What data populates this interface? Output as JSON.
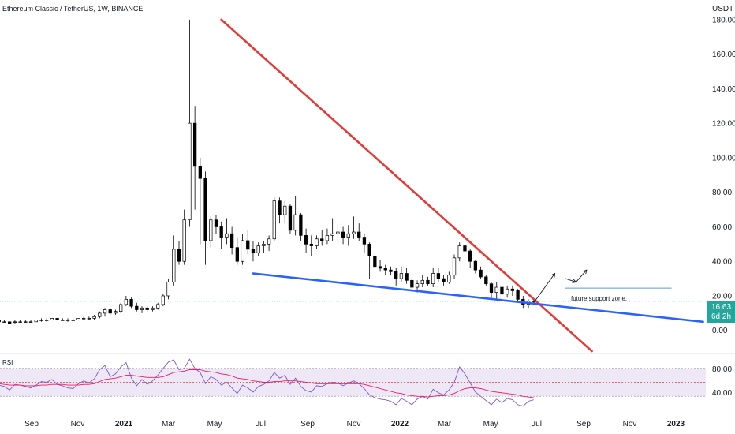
{
  "header": {
    "title": "Ethereum Classic / TetherUS, 1W, BINANCE",
    "currency": "USDT"
  },
  "price_badge": {
    "value": "16.63",
    "countdown": "6d 2h"
  },
  "annotation": {
    "text": "future support zone."
  },
  "rsi": {
    "label": "RSI",
    "upper_label": "80.00",
    "lower_label": "40.00"
  },
  "colors": {
    "up_candle": "#ffffff",
    "down_candle": "#000000",
    "resistance_line": "#e53935",
    "support_line": "#2962ff",
    "rsi_line": "#7e57c2",
    "rsi_ma": "#e91e63",
    "rsi_band": "#ede7f6",
    "badge": "#26a69a"
  },
  "chart_data": [
    {
      "type": "candlestick",
      "title": "Ethereum Classic / TetherUS, 1W, BINANCE",
      "y_axis_label": "USDT",
      "ylim": [
        -12,
        190
      ],
      "y_ticks": [
        "180.00",
        "160.00",
        "140.00",
        "120.00",
        "100.00",
        "80.00",
        "60.00",
        "40.00",
        "20.00",
        "0.00"
      ],
      "x_ticks": [
        "Sep",
        "Nov",
        "2021",
        "Mar",
        "May",
        "Jul",
        "Sep",
        "Nov",
        "2022",
        "Mar",
        "May",
        "Jul",
        "Sep",
        "Nov",
        "2023"
      ],
      "x_ticks_date": [
        "2020-09",
        "2020-11",
        "2021-01",
        "2021-03",
        "2021-05",
        "2021-07",
        "2021-09",
        "2021-11",
        "2022-01",
        "2022-03",
        "2022-05",
        "2022-07",
        "2022-09",
        "2022-11",
        "2023-01"
      ],
      "candles": [
        [
          6,
          7,
          5,
          6
        ],
        [
          6,
          6,
          5,
          5
        ],
        [
          5,
          6,
          5,
          5
        ],
        [
          5,
          5,
          4,
          4
        ],
        [
          5,
          6,
          4,
          5
        ],
        [
          5,
          6,
          5,
          5
        ],
        [
          5,
          6,
          5,
          5
        ],
        [
          5,
          6,
          5,
          5
        ],
        [
          5,
          6,
          5,
          6
        ],
        [
          6,
          7,
          5,
          6
        ],
        [
          6,
          7,
          5,
          6
        ],
        [
          6,
          7,
          6,
          7
        ],
        [
          7,
          7,
          6,
          6
        ],
        [
          6,
          7,
          6,
          6
        ],
        [
          6,
          7,
          5,
          6
        ],
        [
          6,
          7,
          6,
          6
        ],
        [
          6,
          7,
          6,
          7
        ],
        [
          7,
          8,
          6,
          7
        ],
        [
          7,
          8,
          6,
          7
        ],
        [
          7,
          9,
          6,
          8
        ],
        [
          8,
          11,
          7,
          10
        ],
        [
          10,
          13,
          8,
          12
        ],
        [
          12,
          13,
          9,
          10
        ],
        [
          10,
          12,
          9,
          11
        ],
        [
          11,
          16,
          10,
          15
        ],
        [
          15,
          20,
          14,
          18
        ],
        [
          18,
          19,
          13,
          14
        ],
        [
          14,
          16,
          11,
          12
        ],
        [
          12,
          14,
          10,
          13
        ],
        [
          13,
          14,
          11,
          12
        ],
        [
          12,
          14,
          11,
          13
        ],
        [
          13,
          16,
          12,
          15
        ],
        [
          15,
          21,
          14,
          20
        ],
        [
          20,
          30,
          18,
          28
        ],
        [
          28,
          55,
          26,
          47
        ],
        [
          47,
          52,
          38,
          40
        ],
        [
          40,
          70,
          38,
          64
        ],
        [
          64,
          180,
          60,
          120
        ],
        [
          120,
          130,
          70,
          95
        ],
        [
          95,
          100,
          50,
          88
        ],
        [
          88,
          92,
          38,
          52
        ],
        [
          52,
          66,
          48,
          64
        ],
        [
          64,
          67,
          56,
          60
        ],
        [
          60,
          63,
          47,
          54
        ],
        [
          54,
          65,
          50,
          56
        ],
        [
          56,
          60,
          44,
          48
        ],
        [
          48,
          54,
          38,
          40
        ],
        [
          40,
          56,
          38,
          52
        ],
        [
          52,
          58,
          44,
          47
        ],
        [
          47,
          52,
          40,
          45
        ],
        [
          45,
          51,
          43,
          49
        ],
        [
          49,
          52,
          45,
          50
        ],
        [
          50,
          55,
          46,
          53
        ],
        [
          53,
          77,
          52,
          75
        ],
        [
          75,
          77,
          62,
          67
        ],
        [
          67,
          75,
          62,
          72
        ],
        [
          72,
          73,
          56,
          58
        ],
        [
          58,
          78,
          55,
          67
        ],
        [
          67,
          68,
          52,
          55
        ],
        [
          55,
          59,
          45,
          50
        ],
        [
          50,
          55,
          43,
          49
        ],
        [
          49,
          55,
          47,
          53
        ],
        [
          53,
          58,
          49,
          52
        ],
        [
          52,
          59,
          50,
          55
        ],
        [
          55,
          65,
          52,
          56
        ],
        [
          56,
          62,
          50,
          57
        ],
        [
          57,
          60,
          50,
          54
        ],
        [
          54,
          61,
          49,
          56
        ],
        [
          56,
          66,
          53,
          57
        ],
        [
          57,
          62,
          52,
          54
        ],
        [
          54,
          56,
          45,
          50
        ],
        [
          50,
          51,
          30,
          43
        ],
        [
          43,
          45,
          36,
          37
        ],
        [
          37,
          41,
          34,
          36
        ],
        [
          36,
          38,
          32,
          35
        ],
        [
          35,
          37,
          32,
          34
        ],
        [
          34,
          36,
          26,
          30
        ],
        [
          30,
          37,
          28,
          33
        ],
        [
          33,
          36,
          27,
          29
        ],
        [
          29,
          30,
          23,
          25
        ],
        [
          25,
          29,
          22,
          27
        ],
        [
          27,
          32,
          25,
          29
        ],
        [
          29,
          31,
          26,
          27
        ],
        [
          27,
          36,
          25,
          33
        ],
        [
          33,
          36,
          28,
          30
        ],
        [
          30,
          32,
          26,
          28
        ],
        [
          28,
          34,
          27,
          32
        ],
        [
          32,
          44,
          30,
          42
        ],
        [
          42,
          51,
          40,
          49
        ],
        [
          49,
          50,
          40,
          46
        ],
        [
          46,
          47,
          36,
          40
        ],
        [
          40,
          41,
          33,
          35
        ],
        [
          35,
          37,
          30,
          31
        ],
        [
          31,
          32,
          26,
          27
        ],
        [
          27,
          28,
          18,
          22
        ],
        [
          22,
          28,
          18,
          25
        ],
        [
          25,
          26,
          19,
          21
        ],
        [
          21,
          26,
          19,
          24
        ],
        [
          24,
          26,
          20,
          23
        ],
        [
          23,
          24,
          17,
          18
        ],
        [
          18,
          20,
          13,
          15
        ],
        [
          15,
          18,
          13,
          17
        ],
        [
          17,
          18,
          15,
          16.63
        ]
      ],
      "first_candle_date": "2020-07-13",
      "candle_interval_weeks": 1,
      "trendlines": [
        {
          "name": "resistance",
          "color": "#e53935",
          "points": [
            [
              "2021-05-10",
              180
            ],
            [
              "2022-09-12",
              -12
            ]
          ]
        },
        {
          "name": "support",
          "color": "#2962ff",
          "points": [
            [
              "2021-06-21",
              33
            ],
            [
              "2023-02-06",
              5
            ]
          ]
        },
        {
          "name": "future-support-zone",
          "color": "#5b9bd5",
          "points": [
            [
              "2022-08-08",
              24.5
            ],
            [
              "2022-12-26",
              24.5
            ]
          ]
        }
      ],
      "arrows": [
        {
          "from": [
            "2022-06-27",
            16
          ],
          "to": [
            "2022-07-25",
            33
          ]
        },
        {
          "from": [
            "2022-08-08",
            30
          ],
          "to": [
            "2022-08-22",
            28
          ]
        },
        {
          "from": [
            "2022-08-22",
            28
          ],
          "to": [
            "2022-09-05",
            35
          ]
        }
      ],
      "last_price": 16.63
    },
    {
      "type": "line",
      "name": "RSI",
      "ylim": [
        20,
        100
      ],
      "y_ticks": [
        "80.00",
        "40.00"
      ],
      "band": [
        40,
        80
      ],
      "midline": 60,
      "series": [
        {
          "values": [
            60,
            56,
            54,
            49,
            57,
            56,
            54,
            52,
            56,
            61,
            60,
            64,
            57,
            55,
            52,
            51,
            58,
            62,
            59,
            65,
            78,
            84,
            68,
            72,
            82,
            88,
            66,
            55,
            64,
            57,
            62,
            70,
            80,
            89,
            92,
            78,
            80,
            93,
            80,
            74,
            58,
            68,
            64,
            56,
            60,
            52,
            44,
            56,
            52,
            46,
            54,
            57,
            62,
            74,
            66,
            70,
            57,
            66,
            54,
            48,
            46,
            55,
            54,
            58,
            60,
            59,
            55,
            59,
            62,
            58,
            51,
            42,
            38,
            36,
            35,
            33,
            28,
            37,
            33,
            28,
            36,
            40,
            36,
            50,
            45,
            42,
            49,
            60,
            82,
            72,
            59,
            46,
            40,
            34,
            28,
            36,
            31,
            37,
            35,
            28,
            26,
            33,
            35
          ]
        },
        {
          "values": [
            59,
            58,
            57,
            56,
            56,
            56,
            55,
            55,
            55,
            56,
            56,
            57,
            57,
            57,
            56,
            56,
            56,
            57,
            57,
            58,
            61,
            64,
            65,
            66,
            68,
            70,
            70,
            69,
            68,
            67,
            67,
            67,
            68,
            71,
            74,
            75,
            76,
            78,
            78,
            78,
            76,
            75,
            74,
            72,
            71,
            69,
            66,
            65,
            64,
            62,
            61,
            60,
            60,
            61,
            61,
            62,
            62,
            62,
            61,
            60,
            59,
            58,
            58,
            58,
            58,
            58,
            58,
            58,
            58,
            58,
            57,
            55,
            53,
            51,
            49,
            47,
            45,
            44,
            42,
            41,
            40,
            40,
            39,
            40,
            41,
            41,
            42,
            44,
            48,
            51,
            52,
            52,
            51,
            49,
            47,
            46,
            45,
            44,
            43,
            42,
            40,
            39,
            38
          ]
        }
      ],
      "x_ticks": [
        "Sep",
        "Nov",
        "2021",
        "Mar",
        "May",
        "Jul",
        "Sep",
        "Nov",
        "2022",
        "Mar",
        "May",
        "Jul",
        "Sep",
        "Nov",
        "2023"
      ]
    }
  ]
}
